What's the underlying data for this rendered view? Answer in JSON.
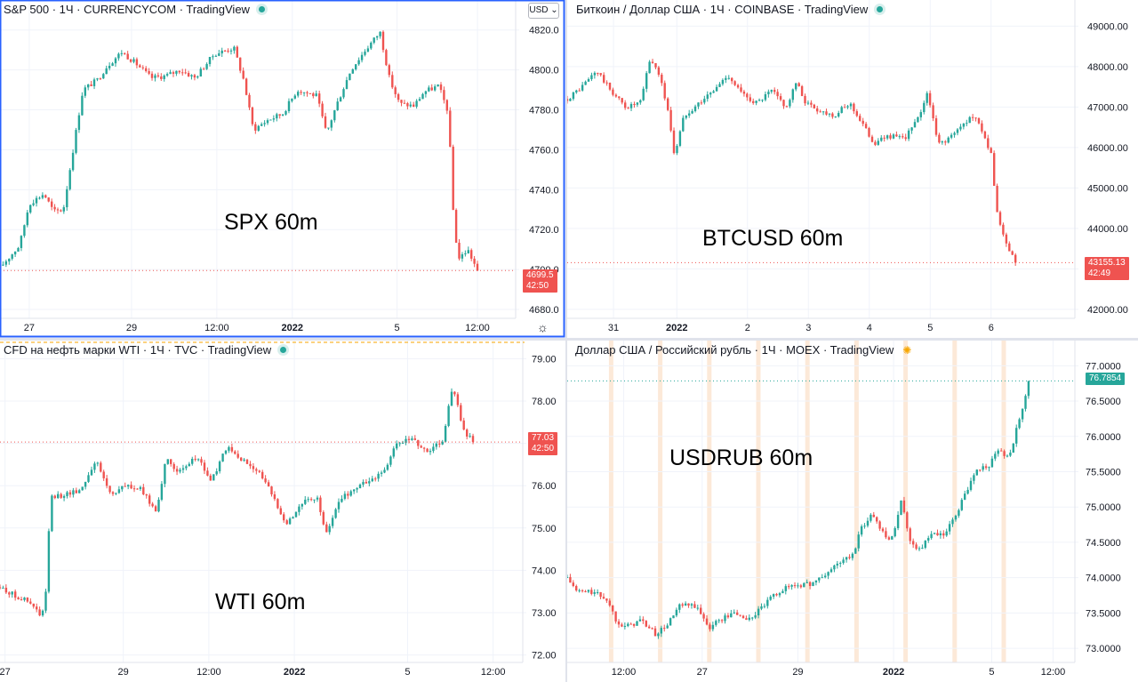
{
  "colors": {
    "up": "#26a69a",
    "down": "#ef5350",
    "grid": "#f0f3fa",
    "axis": "#e0e3eb",
    "focus": "#2962ff",
    "session": "#fce9d8"
  },
  "ui": {
    "currency_button": "USD ⌄",
    "settings_icon": "gear-icon",
    "status_icons": [
      "green-dot-icon",
      "green-dot-icon",
      "green-dot-icon",
      "sun-icon"
    ]
  },
  "chart_data": [
    {
      "type": "candlestick",
      "header": "S&P 500 · 1Ч · CURRENCYCOM · TradingView",
      "overlay_text": "SPX 60m",
      "y_ticks": [
        "4820.0",
        "4800.0",
        "4780.0",
        "4760.0",
        "4740.0",
        "4720.0",
        "4700.0",
        "4680.0"
      ],
      "ylim": [
        4676,
        4827
      ],
      "x_ticks": [
        {
          "label": "27",
          "t": 0.06
        },
        {
          "label": "29",
          "t": 0.27
        },
        {
          "label": "12:00",
          "t": 0.445
        },
        {
          "label": "2022",
          "t": 0.6,
          "bold": true
        },
        {
          "label": "5",
          "t": 0.815
        },
        {
          "label": "12:00",
          "t": 0.98
        }
      ],
      "price_label": {
        "value": "4699.5",
        "countdown": "42:50",
        "color": "#ef5350"
      },
      "series": [
        [
          0.0,
          4701
        ],
        [
          0.04,
          4712
        ],
        [
          0.06,
          4733
        ],
        [
          0.09,
          4738
        ],
        [
          0.11,
          4729
        ],
        [
          0.13,
          4730
        ],
        [
          0.15,
          4760
        ],
        [
          0.17,
          4790
        ],
        [
          0.2,
          4795
        ],
        [
          0.22,
          4802
        ],
        [
          0.25,
          4809
        ],
        [
          0.28,
          4803
        ],
        [
          0.31,
          4796
        ],
        [
          0.34,
          4797
        ],
        [
          0.37,
          4800
        ],
        [
          0.4,
          4796
        ],
        [
          0.44,
          4808
        ],
        [
          0.48,
          4811
        ],
        [
          0.5,
          4795
        ],
        [
          0.52,
          4770
        ],
        [
          0.55,
          4775
        ],
        [
          0.58,
          4778
        ],
        [
          0.61,
          4790
        ],
        [
          0.65,
          4787
        ],
        [
          0.67,
          4768
        ],
        [
          0.69,
          4782
        ],
        [
          0.72,
          4800
        ],
        [
          0.75,
          4810
        ],
        [
          0.78,
          4819
        ],
        [
          0.8,
          4795
        ],
        [
          0.82,
          4783
        ],
        [
          0.85,
          4782
        ],
        [
          0.87,
          4789
        ],
        [
          0.9,
          4792
        ],
        [
          0.92,
          4779
        ],
        [
          0.93,
          4730
        ],
        [
          0.94,
          4705
        ],
        [
          0.96,
          4710
        ],
        [
          0.98,
          4699.5
        ]
      ]
    },
    {
      "type": "candlestick",
      "header": "Биткоин / Доллар США · 1Ч · COINBASE · TradingView",
      "overlay_text": "BTCUSD 60m",
      "y_ticks": [
        "49000.00",
        "48000.00",
        "47000.00",
        "46000.00",
        "45000.00",
        "44000.00",
        "43000.00",
        "42000.00"
      ],
      "ylim": [
        41800,
        49250
      ],
      "x_ticks": [
        {
          "label": "31",
          "t": 0.095
        },
        {
          "label": "2022",
          "t": 0.225,
          "bold": true
        },
        {
          "label": "2",
          "t": 0.37
        },
        {
          "label": "3",
          "t": 0.495
        },
        {
          "label": "4",
          "t": 0.62
        },
        {
          "label": "5",
          "t": 0.745
        },
        {
          "label": "6",
          "t": 0.87
        }
      ],
      "price_label": {
        "value": "43155.13",
        "countdown": "42:49",
        "color": "#ef5350"
      },
      "series": [
        [
          0.0,
          47200
        ],
        [
          0.03,
          47500
        ],
        [
          0.06,
          47900
        ],
        [
          0.09,
          47400
        ],
        [
          0.12,
          47000
        ],
        [
          0.15,
          47100
        ],
        [
          0.17,
          48200
        ],
        [
          0.19,
          47800
        ],
        [
          0.21,
          46700
        ],
        [
          0.22,
          45800
        ],
        [
          0.24,
          46800
        ],
        [
          0.27,
          47100
        ],
        [
          0.3,
          47400
        ],
        [
          0.33,
          47800
        ],
        [
          0.36,
          47300
        ],
        [
          0.39,
          47100
        ],
        [
          0.42,
          47400
        ],
        [
          0.45,
          47000
        ],
        [
          0.47,
          47600
        ],
        [
          0.49,
          47100
        ],
        [
          0.52,
          46900
        ],
        [
          0.55,
          46800
        ],
        [
          0.58,
          47100
        ],
        [
          0.6,
          46700
        ],
        [
          0.63,
          46100
        ],
        [
          0.66,
          46300
        ],
        [
          0.69,
          46200
        ],
        [
          0.72,
          46700
        ],
        [
          0.74,
          47400
        ],
        [
          0.76,
          46100
        ],
        [
          0.78,
          46200
        ],
        [
          0.8,
          46400
        ],
        [
          0.83,
          46800
        ],
        [
          0.85,
          46500
        ],
        [
          0.87,
          45800
        ],
        [
          0.88,
          44500
        ],
        [
          0.9,
          43600
        ],
        [
          0.92,
          43155
        ]
      ]
    },
    {
      "type": "candlestick",
      "header": "CFD на нефть марки WTI · 1Ч · TVC · TradingView",
      "overlay_text": "WTI 60m",
      "y_ticks": [
        "79.00",
        "78.00",
        "77.00",
        "76.00",
        "75.00",
        "74.00",
        "73.00",
        "72.00"
      ],
      "ylim": [
        71.95,
        79.05
      ],
      "x_ticks": [
        {
          "label": "27",
          "t": 0.01
        },
        {
          "label": "29",
          "t": 0.245
        },
        {
          "label": "12:00",
          "t": 0.415
        },
        {
          "label": "2022",
          "t": 0.585,
          "bold": true
        },
        {
          "label": "5",
          "t": 0.81
        },
        {
          "label": "12:00",
          "t": 0.98
        }
      ],
      "price_label": {
        "value": "77.03",
        "countdown": "42:50",
        "color": "#ef5350"
      },
      "series": [
        [
          0.0,
          73.6
        ],
        [
          0.03,
          73.4
        ],
        [
          0.05,
          73.3
        ],
        [
          0.07,
          73.1
        ],
        [
          0.08,
          72.9
        ],
        [
          0.09,
          73.2
        ],
        [
          0.1,
          75.7
        ],
        [
          0.13,
          75.8
        ],
        [
          0.16,
          75.9
        ],
        [
          0.19,
          76.6
        ],
        [
          0.22,
          75.8
        ],
        [
          0.25,
          76.0
        ],
        [
          0.28,
          75.9
        ],
        [
          0.31,
          75.4
        ],
        [
          0.33,
          76.6
        ],
        [
          0.36,
          76.3
        ],
        [
          0.39,
          76.7
        ],
        [
          0.42,
          76.1
        ],
        [
          0.45,
          76.9
        ],
        [
          0.48,
          76.6
        ],
        [
          0.51,
          76.4
        ],
        [
          0.54,
          75.8
        ],
        [
          0.57,
          75.1
        ],
        [
          0.6,
          75.6
        ],
        [
          0.63,
          75.7
        ],
        [
          0.65,
          74.8
        ],
        [
          0.67,
          75.6
        ],
        [
          0.7,
          75.9
        ],
        [
          0.73,
          76.1
        ],
        [
          0.76,
          76.3
        ],
        [
          0.79,
          77.0
        ],
        [
          0.82,
          77.1
        ],
        [
          0.85,
          76.8
        ],
        [
          0.88,
          77.1
        ],
        [
          0.9,
          78.4
        ],
        [
          0.92,
          77.3
        ],
        [
          0.94,
          77.03
        ]
      ]
    },
    {
      "type": "candlestick",
      "header": "Доллар США / Российский рубль · 1Ч · MOEX · TradingView",
      "overlay_text": "USDRUB 60m",
      "y_ticks": [
        "77.0000",
        "76.5000",
        "76.0000",
        "75.5000",
        "74.5000",
        "74.0000",
        "73.5000",
        "73.0000"
      ],
      "y_tick_values": [
        77.0,
        76.5,
        76.0,
        75.5,
        74.5,
        74.0,
        73.5,
        73.0
      ],
      "extra_tick": {
        "label": "75.0000",
        "value": 75.0
      },
      "ylim": [
        72.85,
        77.13
      ],
      "x_ticks": [
        {
          "label": "12:00",
          "t": 0.115
        },
        {
          "label": "27",
          "t": 0.275
        },
        {
          "label": "29",
          "t": 0.47
        },
        {
          "label": "2022",
          "t": 0.665,
          "bold": true
        },
        {
          "label": "5",
          "t": 0.865
        },
        {
          "label": "12:00",
          "t": 0.99
        }
      ],
      "price_label": {
        "value": "76.7854",
        "color": "#26a69a"
      },
      "session_bands": [
        0.085,
        0.185,
        0.285,
        0.385,
        0.485,
        0.585,
        0.685,
        0.785,
        0.885
      ],
      "series": [
        [
          0.0,
          74.0
        ],
        [
          0.02,
          73.8
        ],
        [
          0.05,
          73.8
        ],
        [
          0.08,
          73.7
        ],
        [
          0.1,
          73.4
        ],
        [
          0.12,
          73.3
        ],
        [
          0.15,
          73.4
        ],
        [
          0.18,
          73.2
        ],
        [
          0.2,
          73.3
        ],
        [
          0.23,
          73.6
        ],
        [
          0.26,
          73.6
        ],
        [
          0.29,
          73.3
        ],
        [
          0.31,
          73.4
        ],
        [
          0.34,
          73.5
        ],
        [
          0.37,
          73.4
        ],
        [
          0.4,
          73.6
        ],
        [
          0.43,
          73.8
        ],
        [
          0.46,
          73.9
        ],
        [
          0.49,
          73.9
        ],
        [
          0.52,
          74.0
        ],
        [
          0.55,
          74.2
        ],
        [
          0.58,
          74.3
        ],
        [
          0.6,
          74.7
        ],
        [
          0.62,
          74.9
        ],
        [
          0.64,
          74.7
        ],
        [
          0.66,
          74.5
        ],
        [
          0.68,
          75.1
        ],
        [
          0.7,
          74.5
        ],
        [
          0.72,
          74.4
        ],
        [
          0.74,
          74.6
        ],
        [
          0.77,
          74.6
        ],
        [
          0.8,
          75.0
        ],
        [
          0.83,
          75.5
        ],
        [
          0.86,
          75.6
        ],
        [
          0.88,
          75.8
        ],
        [
          0.9,
          75.7
        ],
        [
          0.92,
          76.2
        ],
        [
          0.94,
          76.7854
        ]
      ]
    }
  ]
}
